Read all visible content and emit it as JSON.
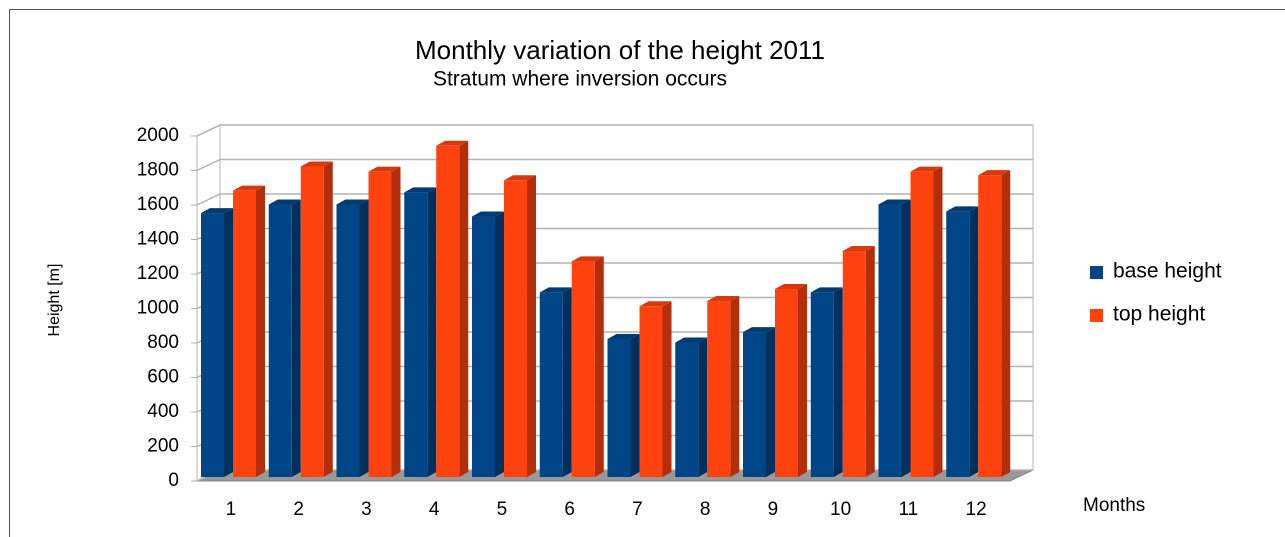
{
  "chart_data": {
    "type": "bar",
    "title": "Monthly variation of the height 2011",
    "subtitle": "Stratum where inversion occurs",
    "x_label": "Months",
    "y_label": "Height [m]",
    "categories": [
      "1",
      "2",
      "3",
      "4",
      "5",
      "6",
      "7",
      "8",
      "9",
      "10",
      "11",
      "12"
    ],
    "series": [
      {
        "name": "base height",
        "color": "#004586",
        "values": [
          1530,
          1580,
          1580,
          1650,
          1510,
          1070,
          800,
          780,
          840,
          1070,
          1580,
          1540
        ]
      },
      {
        "name": "top height",
        "color": "#ff420e",
        "values": [
          1660,
          1800,
          1770,
          1920,
          1720,
          1250,
          990,
          1020,
          1090,
          1310,
          1770,
          1750
        ]
      }
    ],
    "ylim": [
      0,
      2000
    ],
    "yticks": [
      0,
      200,
      400,
      600,
      800,
      1000,
      1200,
      1400,
      1600,
      1800,
      2000
    ],
    "grid": true,
    "legend": "right"
  }
}
